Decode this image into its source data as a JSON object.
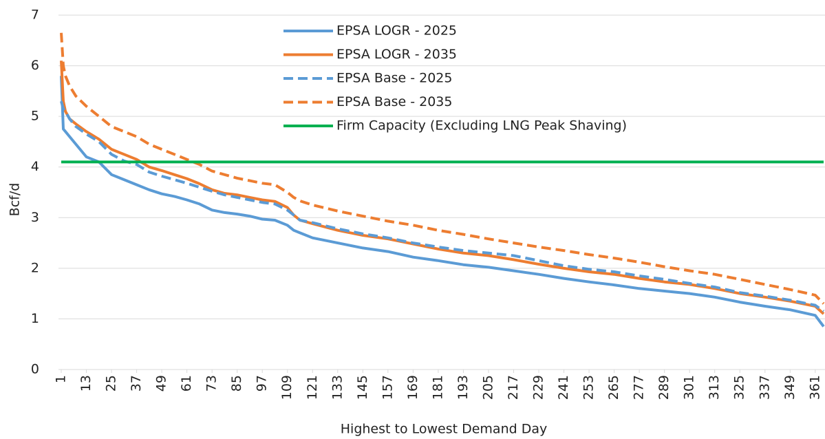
{
  "chart_data": {
    "type": "line",
    "xlabel": "Highest to Lowest Demand Day",
    "ylabel": "Bcf/d",
    "x": [
      1,
      2,
      3,
      5,
      8,
      13,
      19,
      25,
      31,
      37,
      43,
      49,
      55,
      61,
      67,
      73,
      79,
      85,
      91,
      97,
      103,
      109,
      112,
      115,
      121,
      133,
      145,
      157,
      169,
      181,
      193,
      205,
      217,
      229,
      241,
      253,
      265,
      277,
      289,
      301,
      313,
      325,
      337,
      349,
      361,
      365
    ],
    "series": [
      {
        "name": "EPSA LOGR - 2025",
        "color": "#5b9bd5",
        "style": "solid",
        "values": [
          5.8,
          4.75,
          4.7,
          4.6,
          4.45,
          4.2,
          4.1,
          3.85,
          3.75,
          3.65,
          3.55,
          3.47,
          3.42,
          3.35,
          3.27,
          3.15,
          3.1,
          3.07,
          3.03,
          2.97,
          2.95,
          2.85,
          2.75,
          2.7,
          2.6,
          2.5,
          2.4,
          2.33,
          2.22,
          2.15,
          2.07,
          2.02,
          1.95,
          1.88,
          1.8,
          1.73,
          1.67,
          1.6,
          1.55,
          1.5,
          1.43,
          1.33,
          1.25,
          1.18,
          1.07,
          0.85
        ]
      },
      {
        "name": "EPSA LOGR - 2035",
        "color": "#ed7d31",
        "style": "solid",
        "values": [
          6.1,
          5.3,
          5.1,
          4.95,
          4.85,
          4.7,
          4.55,
          4.35,
          4.25,
          4.15,
          4.0,
          3.93,
          3.85,
          3.77,
          3.67,
          3.55,
          3.48,
          3.45,
          3.4,
          3.35,
          3.32,
          3.2,
          3.05,
          2.95,
          2.88,
          2.75,
          2.65,
          2.58,
          2.48,
          2.38,
          2.3,
          2.25,
          2.17,
          2.08,
          2.0,
          1.93,
          1.88,
          1.8,
          1.73,
          1.68,
          1.6,
          1.5,
          1.43,
          1.35,
          1.25,
          1.1
        ]
      },
      {
        "name": "EPSA Base - 2025",
        "color": "#5b9bd5",
        "style": "dashed",
        "values": [
          5.3,
          5.15,
          5.1,
          4.95,
          4.8,
          4.65,
          4.5,
          4.25,
          4.12,
          4.05,
          3.9,
          3.82,
          3.75,
          3.68,
          3.6,
          3.52,
          3.45,
          3.4,
          3.35,
          3.3,
          3.27,
          3.15,
          3.05,
          2.95,
          2.9,
          2.78,
          2.68,
          2.6,
          2.5,
          2.42,
          2.35,
          2.3,
          2.25,
          2.15,
          2.05,
          1.98,
          1.93,
          1.85,
          1.78,
          1.7,
          1.63,
          1.52,
          1.45,
          1.37,
          1.27,
          1.15
        ]
      },
      {
        "name": "EPSA Base - 2035",
        "color": "#ed7d31",
        "style": "dashed",
        "values": [
          6.65,
          6.0,
          5.8,
          5.6,
          5.4,
          5.2,
          5.0,
          4.8,
          4.7,
          4.6,
          4.45,
          4.35,
          4.25,
          4.15,
          4.05,
          3.92,
          3.85,
          3.78,
          3.73,
          3.68,
          3.65,
          3.5,
          3.4,
          3.33,
          3.25,
          3.13,
          3.03,
          2.93,
          2.85,
          2.75,
          2.67,
          2.58,
          2.5,
          2.42,
          2.35,
          2.27,
          2.2,
          2.12,
          2.03,
          1.95,
          1.88,
          1.78,
          1.68,
          1.58,
          1.47,
          1.3
        ]
      },
      {
        "name": "Firm Capacity (Excluding LNG Peak Shaving)",
        "color": "#00b050",
        "style": "solid",
        "values": [
          4.1,
          4.1,
          4.1,
          4.1,
          4.1,
          4.1,
          4.1,
          4.1,
          4.1,
          4.1,
          4.1,
          4.1,
          4.1,
          4.1,
          4.1,
          4.1,
          4.1,
          4.1,
          4.1,
          4.1,
          4.1,
          4.1,
          4.1,
          4.1,
          4.1,
          4.1,
          4.1,
          4.1,
          4.1,
          4.1,
          4.1,
          4.1,
          4.1,
          4.1,
          4.1,
          4.1,
          4.1,
          4.1,
          4.1,
          4.1,
          4.1,
          4.1,
          4.1,
          4.1,
          4.1,
          4.1
        ]
      }
    ],
    "xlim": [
      1,
      365
    ],
    "xticks": [
      1,
      13,
      25,
      37,
      49,
      61,
      73,
      85,
      97,
      109,
      121,
      133,
      145,
      157,
      169,
      181,
      193,
      205,
      217,
      229,
      241,
      253,
      265,
      277,
      289,
      301,
      313,
      325,
      337,
      349,
      361
    ],
    "ylim": [
      0,
      7
    ],
    "yticks": [
      0,
      1,
      2,
      3,
      4,
      5,
      6,
      7
    ],
    "grid": true,
    "legend": "top"
  }
}
